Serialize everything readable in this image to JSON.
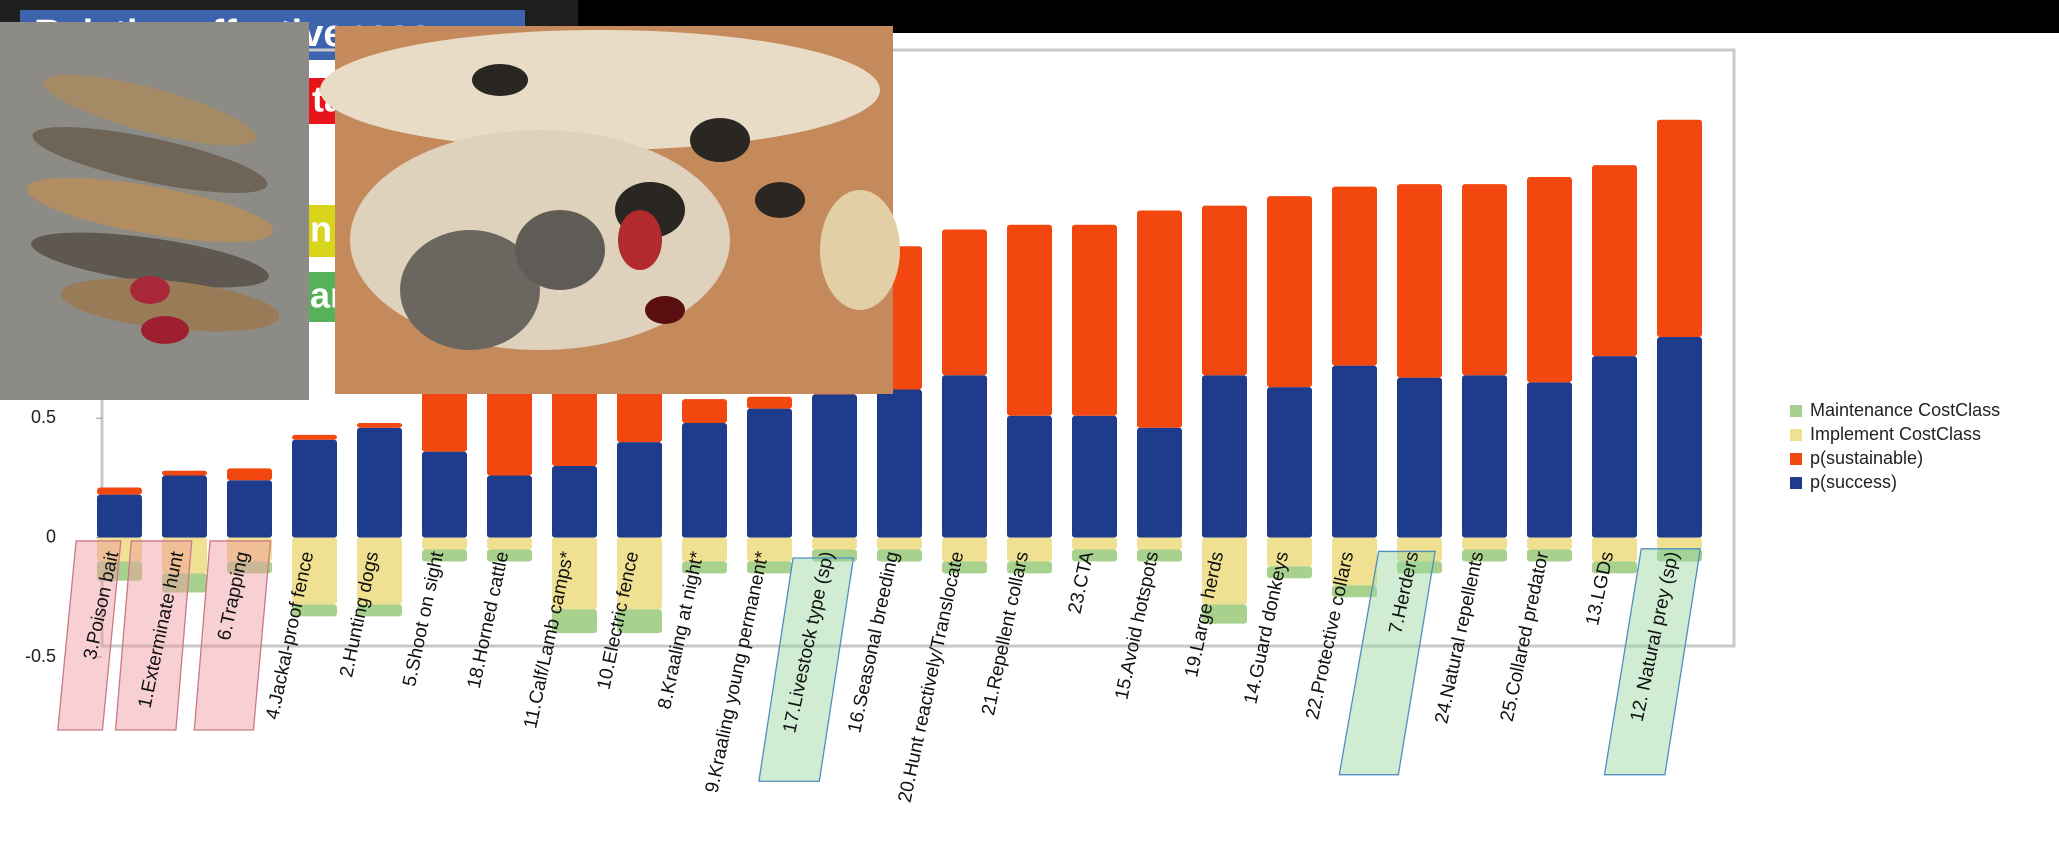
{
  "slide": {
    "title": "Relative effectiveness",
    "tags": [
      "ta",
      "n",
      "ar"
    ]
  },
  "chart_data": {
    "type": "bar",
    "stacked": true,
    "categories": [
      "3.Poison bait",
      "1.Exterminate hunt",
      "6.Trapping",
      "4.Jackal-proof fence",
      "2.Hunting dogs",
      "5.Shoot on sight",
      "18.Horned cattle",
      "11.Calf/Lamb camps*",
      "10.Electric fence",
      "8.Kraaling at night*",
      "9.Kraaling young permanent*",
      "17.Livestock type (sp)",
      "16.Seasonal breeding",
      "20.Hunt reactively/Translocate",
      "21.Repellent collars",
      "23.CTA",
      "15.Avoid hotspots",
      "19.Large herds",
      "14.Guard donkeys",
      "22.Protective collars",
      "7.Herders",
      "24.Natural repellents",
      "25.Collared predator",
      "13.LGDs",
      "12. Natural prey (sp)"
    ],
    "series": [
      {
        "name": "p(success)",
        "color": "#1f3c8c",
        "values": [
          0.18,
          0.26,
          0.24,
          0.41,
          0.46,
          0.36,
          0.26,
          0.3,
          0.4,
          0.48,
          0.54,
          0.6,
          0.62,
          0.68,
          0.51,
          0.51,
          0.46,
          0.68,
          0.63,
          0.72,
          0.67,
          0.68,
          0.65,
          0.76,
          0.84
        ]
      },
      {
        "name": "p(sustainable)",
        "color": "#f2470f",
        "values": [
          0.03,
          0.02,
          0.05,
          0.02,
          0.02,
          0.3,
          0.45,
          0.35,
          0.25,
          0.1,
          0.05,
          0.3,
          0.6,
          0.61,
          0.8,
          0.8,
          0.91,
          0.71,
          0.8,
          0.75,
          0.81,
          0.8,
          0.86,
          0.8,
          0.91
        ]
      },
      {
        "name": "Implement CostClass",
        "color": "#f0e192",
        "values": [
          -0.1,
          -0.15,
          -0.1,
          -0.28,
          -0.28,
          -0.05,
          -0.05,
          -0.3,
          -0.3,
          -0.1,
          -0.1,
          -0.05,
          -0.05,
          -0.1,
          -0.1,
          -0.05,
          -0.05,
          -0.28,
          -0.12,
          -0.2,
          -0.1,
          -0.05,
          -0.05,
          -0.1,
          -0.05
        ]
      },
      {
        "name": "Maintenance CostClass",
        "color": "#a9d18e",
        "values": [
          -0.08,
          -0.08,
          -0.05,
          -0.05,
          -0.05,
          -0.05,
          -0.05,
          -0.1,
          -0.1,
          -0.05,
          -0.05,
          -0.05,
          -0.05,
          -0.05,
          -0.05,
          -0.05,
          -0.05,
          -0.08,
          -0.05,
          -0.05,
          -0.05,
          -0.05,
          -0.05,
          -0.05,
          -0.05
        ]
      }
    ],
    "ylim": [
      -0.5,
      2
    ],
    "yticks": [
      -0.5,
      0,
      0.5
    ],
    "legend": "right"
  }
}
